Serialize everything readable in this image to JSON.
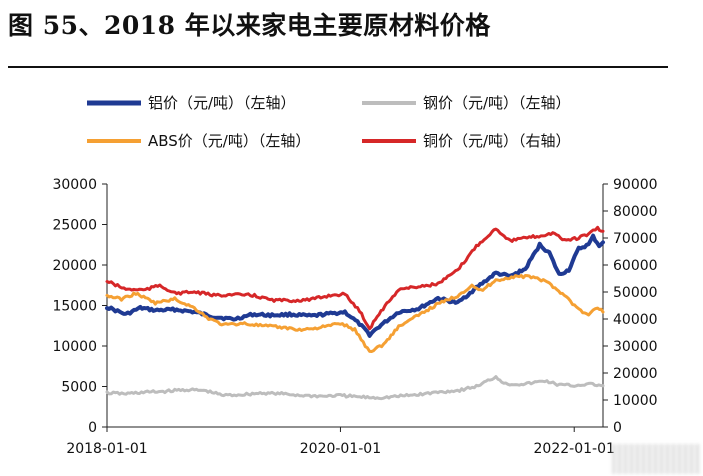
{
  "title": "图 55、2018 年以来家电主要原材料价格",
  "chart_data": {
    "type": "line",
    "title": "图 55、2018 年以来家电主要原材料价格",
    "x_ticks": [
      "2018-01-01",
      "2020-01-01",
      "2022-01-01"
    ],
    "x_range": [
      "2018-01-01",
      "2022-04-01"
    ],
    "left_axis": {
      "range": [
        0,
        30000
      ],
      "ticks": [
        "0",
        "5000",
        "10000",
        "15000",
        "20000",
        "25000",
        "30000"
      ]
    },
    "right_axis": {
      "range": [
        0,
        90000
      ],
      "ticks": [
        "0",
        "10000",
        "20000",
        "30000",
        "40000",
        "50000",
        "60000",
        "70000",
        "80000",
        "90000"
      ]
    },
    "grid": false,
    "legend_position": "top",
    "series": [
      {
        "name": "铝价（元/吨）（左轴）",
        "axis": "left",
        "color": "#1f3a93",
        "width": 4,
        "points": [
          [
            "2018-01-01",
            14800
          ],
          [
            "2018-03-01",
            13900
          ],
          [
            "2018-04-15",
            14700
          ],
          [
            "2018-06-01",
            14400
          ],
          [
            "2018-08-01",
            14500
          ],
          [
            "2018-10-01",
            14200
          ],
          [
            "2018-12-01",
            13600
          ],
          [
            "2019-02-01",
            13300
          ],
          [
            "2019-04-01",
            13900
          ],
          [
            "2019-06-01",
            13800
          ],
          [
            "2019-08-01",
            13900
          ],
          [
            "2019-10-01",
            13700
          ],
          [
            "2019-12-01",
            14000
          ],
          [
            "2020-01-15",
            14200
          ],
          [
            "2020-03-01",
            12700
          ],
          [
            "2020-04-01",
            11400
          ],
          [
            "2020-05-01",
            12400
          ],
          [
            "2020-07-01",
            14200
          ],
          [
            "2020-09-01",
            14600
          ],
          [
            "2020-11-01",
            15900
          ],
          [
            "2021-01-01",
            15300
          ],
          [
            "2021-03-01",
            17200
          ],
          [
            "2021-05-01",
            19000
          ],
          [
            "2021-06-15",
            18600
          ],
          [
            "2021-08-01",
            19500
          ],
          [
            "2021-09-15",
            22500
          ],
          [
            "2021-10-15",
            21500
          ],
          [
            "2021-11-15",
            18800
          ],
          [
            "2021-12-15",
            19400
          ],
          [
            "2022-01-15",
            22000
          ],
          [
            "2022-02-15",
            22500
          ],
          [
            "2022-03-01",
            23500
          ],
          [
            "2022-03-20",
            22400
          ],
          [
            "2022-04-01",
            22800
          ]
        ]
      },
      {
        "name": "钢价（元/吨）（左轴）",
        "axis": "left",
        "color": "#bdbdbd",
        "width": 3,
        "points": [
          [
            "2018-01-01",
            4200
          ],
          [
            "2018-03-01",
            4100
          ],
          [
            "2018-05-01",
            4300
          ],
          [
            "2018-07-01",
            4400
          ],
          [
            "2018-09-01",
            4600
          ],
          [
            "2018-11-01",
            4500
          ],
          [
            "2019-01-01",
            3900
          ],
          [
            "2019-03-01",
            4000
          ],
          [
            "2019-05-01",
            4200
          ],
          [
            "2019-07-01",
            4100
          ],
          [
            "2019-09-01",
            3900
          ],
          [
            "2019-11-01",
            3800
          ],
          [
            "2020-01-01",
            3900
          ],
          [
            "2020-03-01",
            3700
          ],
          [
            "2020-05-01",
            3600
          ],
          [
            "2020-07-01",
            3800
          ],
          [
            "2020-09-01",
            4000
          ],
          [
            "2020-11-01",
            4300
          ],
          [
            "2021-01-01",
            4500
          ],
          [
            "2021-03-01",
            5000
          ],
          [
            "2021-05-01",
            6200
          ],
          [
            "2021-06-01",
            5300
          ],
          [
            "2021-08-01",
            5300
          ],
          [
            "2021-10-01",
            5700
          ],
          [
            "2021-11-15",
            5200
          ],
          [
            "2022-01-01",
            5100
          ],
          [
            "2022-02-15",
            5300
          ],
          [
            "2022-04-01",
            5100
          ]
        ]
      },
      {
        "name": "ABS价（元/吨）（左轴）",
        "axis": "left",
        "color": "#f5a033",
        "width": 3,
        "points": [
          [
            "2018-01-01",
            16200
          ],
          [
            "2018-02-15",
            15800
          ],
          [
            "2018-04-01",
            16500
          ],
          [
            "2018-06-01",
            15300
          ],
          [
            "2018-08-01",
            15800
          ],
          [
            "2018-10-01",
            14700
          ],
          [
            "2018-11-15",
            13400
          ],
          [
            "2019-01-01",
            12600
          ],
          [
            "2019-03-01",
            12800
          ],
          [
            "2019-05-01",
            12500
          ],
          [
            "2019-07-01",
            12300
          ],
          [
            "2019-09-01",
            12000
          ],
          [
            "2019-11-01",
            12300
          ],
          [
            "2020-01-01",
            12800
          ],
          [
            "2020-02-15",
            12000
          ],
          [
            "2020-04-01",
            9300
          ],
          [
            "2020-05-15",
            10200
          ],
          [
            "2020-07-01",
            12400
          ],
          [
            "2020-09-01",
            13800
          ],
          [
            "2020-11-01",
            15200
          ],
          [
            "2021-01-01",
            16200
          ],
          [
            "2021-02-15",
            17500
          ],
          [
            "2021-03-15",
            16800
          ],
          [
            "2021-05-01",
            18100
          ],
          [
            "2021-07-01",
            18600
          ],
          [
            "2021-09-01",
            18500
          ],
          [
            "2021-10-15",
            17700
          ],
          [
            "2021-12-01",
            16300
          ],
          [
            "2022-01-15",
            14500
          ],
          [
            "2022-02-15",
            13800
          ],
          [
            "2022-03-15",
            14800
          ],
          [
            "2022-04-01",
            14200
          ]
        ]
      },
      {
        "name": "铜价（元/吨）（右轴）",
        "axis": "right",
        "color": "#d62728",
        "width": 3,
        "points": [
          [
            "2018-01-01",
            54000
          ],
          [
            "2018-03-01",
            51000
          ],
          [
            "2018-05-01",
            50800
          ],
          [
            "2018-06-15",
            52500
          ],
          [
            "2018-08-01",
            49500
          ],
          [
            "2018-10-01",
            50000
          ],
          [
            "2018-12-01",
            48800
          ],
          [
            "2019-02-01",
            49000
          ],
          [
            "2019-04-01",
            48800
          ],
          [
            "2019-06-01",
            47000
          ],
          [
            "2019-08-01",
            46800
          ],
          [
            "2019-10-01",
            47200
          ],
          [
            "2019-12-01",
            48800
          ],
          [
            "2020-01-15",
            49200
          ],
          [
            "2020-03-01",
            43000
          ],
          [
            "2020-04-01",
            36500
          ],
          [
            "2020-05-01",
            42000
          ],
          [
            "2020-07-01",
            51000
          ],
          [
            "2020-09-01",
            52000
          ],
          [
            "2020-11-01",
            53000
          ],
          [
            "2021-01-01",
            58000
          ],
          [
            "2021-03-01",
            67000
          ],
          [
            "2021-05-01",
            73500
          ],
          [
            "2021-06-15",
            69000
          ],
          [
            "2021-08-01",
            70000
          ],
          [
            "2021-10-01",
            71000
          ],
          [
            "2021-11-01",
            72000
          ],
          [
            "2021-12-01",
            69000
          ],
          [
            "2022-01-15",
            70000
          ],
          [
            "2022-02-15",
            71500
          ],
          [
            "2022-03-15",
            73500
          ],
          [
            "2022-04-01",
            72500
          ]
        ]
      }
    ],
    "legend": [
      "铝价（元/吨）（左轴）",
      "钢价（元/吨）（左轴）",
      "ABS价（元/吨）（左轴）",
      "铜价（元/吨）（右轴）"
    ]
  }
}
